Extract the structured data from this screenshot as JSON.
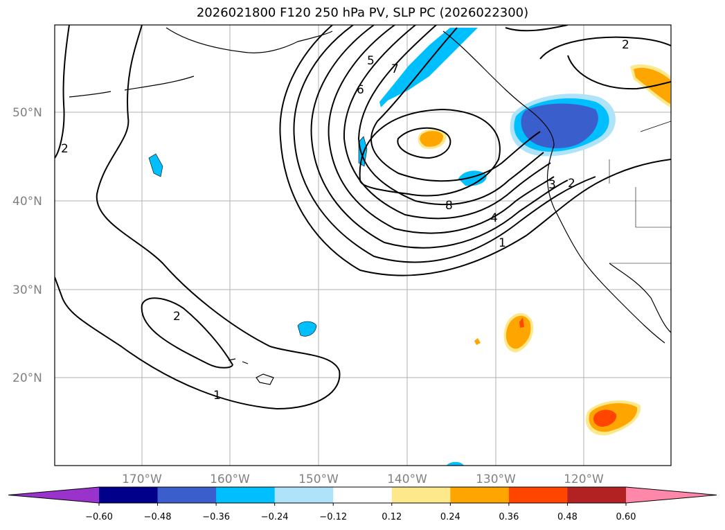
{
  "title": "2026021800 F120 250 hPa PV, SLP PC (2026022300)",
  "map": {
    "lat_labels": [
      "50°N",
      "40°N",
      "30°N",
      "20°N"
    ],
    "lon_labels": [
      "170°W",
      "160°W",
      "150°W",
      "140°W",
      "130°W",
      "120°W"
    ],
    "contour_labels": [
      "2",
      "2",
      "1",
      "5",
      "7",
      "6",
      "8",
      "4",
      "3",
      "2",
      "1",
      "2"
    ],
    "colors": {
      "grid": "#b0b0b0",
      "contour": "#000000",
      "coast": "#000000"
    }
  },
  "colorbar": {
    "colors": [
      "#9933cc",
      "#00008b",
      "#3a5fcd",
      "#00bfff",
      "#aee3fa",
      "#ffffff",
      "#fde98b",
      "#ffa500",
      "#ff4500",
      "#b22222",
      "#ff88aa"
    ],
    "tick_labels": [
      "−0.60",
      "−0.48",
      "−0.36",
      "−0.24",
      "−0.12",
      "0.12",
      "0.24",
      "0.36",
      "0.48",
      "0.60"
    ]
  }
}
